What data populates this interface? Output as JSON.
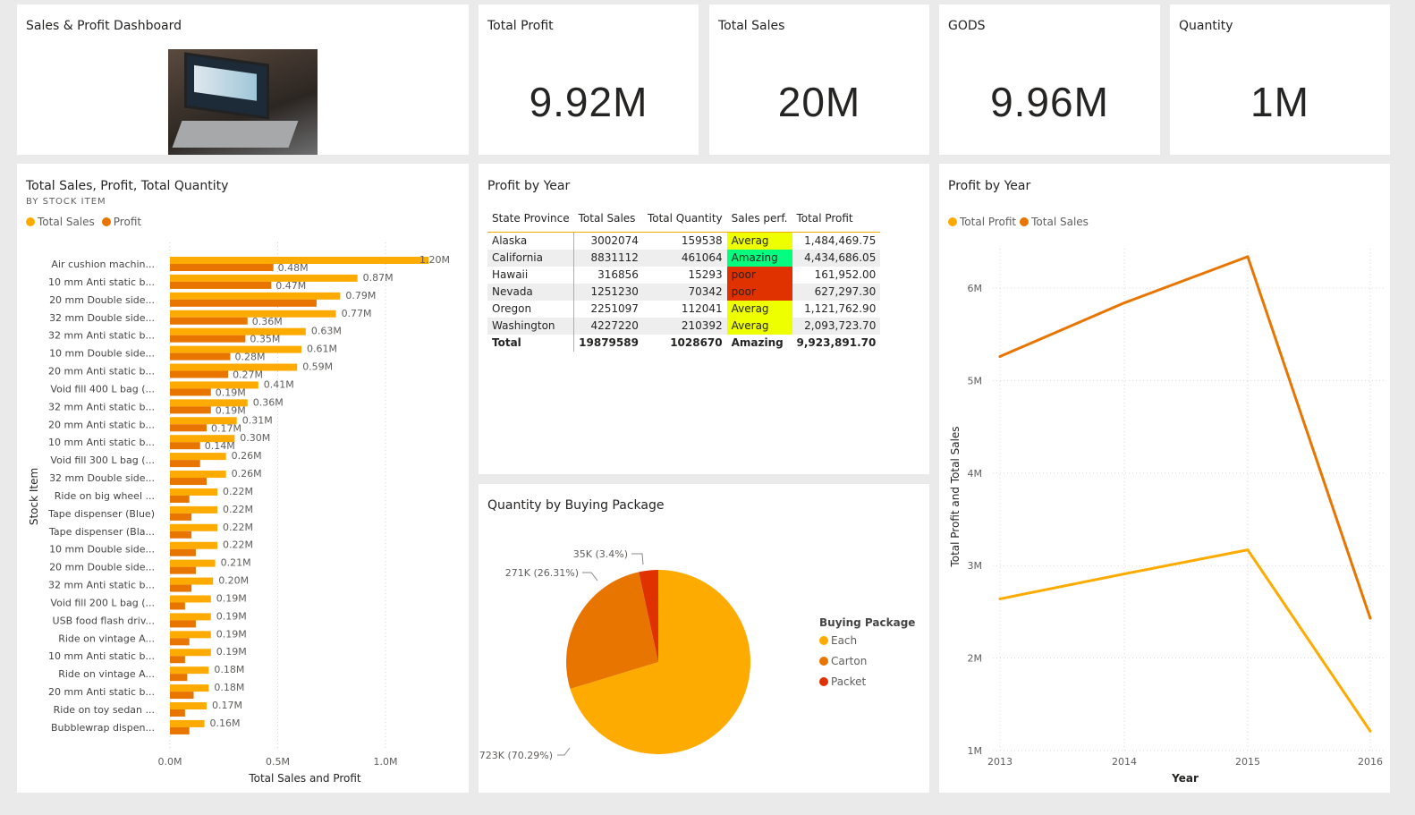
{
  "header": {
    "title": "Sales & Profit Dashboard",
    "image": "laptop-dashboard-photo"
  },
  "kpis": [
    {
      "label": "Total Profit",
      "value": "9.92M"
    },
    {
      "label": "Total Sales",
      "value": "20M"
    },
    {
      "label": "GODS",
      "value": "9.96M"
    },
    {
      "label": "Quantity",
      "value": "1M"
    }
  ],
  "bar_panel": {
    "title": "Total Sales, Profit, Total Quantity",
    "subtitle": "BY STOCK ITEM"
  },
  "table_panel": {
    "title": "Profit by Year",
    "columns": [
      "State Province",
      "Total Sales",
      "Total Quantity",
      "Sales perf.",
      "Total Profit"
    ],
    "rows": [
      [
        "Alaska",
        "3002074",
        "159538",
        "Averag",
        "1,484,469.75"
      ],
      [
        "California",
        "8831112",
        "461064",
        "Amazing",
        "4,434,686.05"
      ],
      [
        "Hawaii",
        "316856",
        "15293",
        "poor",
        "161,952.00"
      ],
      [
        "Nevada",
        "1251230",
        "70342",
        "poor",
        "627,297.30"
      ],
      [
        "Oregon",
        "2251097",
        "112041",
        "Averag",
        "1,121,762.90"
      ],
      [
        "Washington",
        "4227220",
        "210392",
        "Averag",
        "2,093,723.70"
      ]
    ],
    "total": [
      "Total",
      "19879589",
      "1028670",
      "Amazing",
      "9,923,891.70"
    ],
    "perf_colors": {
      "Averag": "#eeff00",
      "Amazing": "#00ff7f",
      "poor": "#e03200"
    }
  },
  "pie_panel": {
    "title": "Quantity by Buying Package"
  },
  "line_panel": {
    "title": "Profit by Year"
  },
  "colors": {
    "sales": "#fdab00",
    "profit": "#e87500",
    "packet": "#e03200"
  },
  "chart_data": [
    {
      "type": "bar",
      "orientation": "horizontal",
      "xlabel": "Total Sales and Profit",
      "ylabel": "Stock Item",
      "xlim": [
        0,
        1200000
      ],
      "xticks": [
        "0.0M",
        "0.5M",
        "1.0M"
      ],
      "grid": true,
      "legend": "top-left",
      "categories": [
        "Air cushion machin...",
        "10 mm Anti static b...",
        "20 mm Double side...",
        "32 mm Double side...",
        "32 mm Anti static b...",
        "10 mm Double side...",
        "20 mm Anti static b...",
        "Void fill 400 L bag (...",
        "32 mm Anti static b...",
        "20 mm Anti static b...",
        "10 mm Anti static b...",
        "Void fill 300 L bag (...",
        "32 mm Double side...",
        "Ride on big wheel ...",
        "Tape dispenser (Blue)",
        "Tape dispenser (Bla...",
        "10 mm Double side...",
        "20 mm Double side...",
        "32 mm Anti static b...",
        "Void fill 200 L bag (...",
        "USB food flash driv...",
        "Ride on vintage A...",
        "10 mm Anti static b...",
        "Ride on vintage A...",
        "20 mm Anti static b...",
        "Ride on toy sedan ...",
        "Bubblewrap dispen..."
      ],
      "series": [
        {
          "name": "Total Sales",
          "values": [
            1.2,
            0.87,
            0.79,
            0.77,
            0.63,
            0.61,
            0.59,
            0.41,
            0.36,
            0.31,
            0.3,
            0.26,
            0.26,
            0.22,
            0.22,
            0.22,
            0.22,
            0.21,
            0.2,
            0.19,
            0.19,
            0.19,
            0.19,
            0.18,
            0.18,
            0.17,
            0.16
          ],
          "labels": [
            "1.20M",
            "0.87M",
            "0.79M",
            "0.77M",
            "0.63M",
            "0.61M",
            "0.59M",
            "0.41M",
            "0.36M",
            "0.31M",
            "0.30M",
            "0.26M",
            "0.26M",
            "0.22M",
            "0.22M",
            "0.22M",
            "0.22M",
            "0.21M",
            "0.20M",
            "0.19M",
            "0.19M",
            "0.19M",
            "0.19M",
            "0.18M",
            "0.18M",
            "0.17M",
            "0.16M"
          ]
        },
        {
          "name": "Profit",
          "values": [
            0.48,
            0.47,
            0.68,
            0.36,
            0.35,
            0.28,
            0.27,
            0.19,
            0.19,
            0.17,
            0.14,
            0.14,
            0.17,
            0.09,
            0.1,
            0.1,
            0.12,
            0.12,
            0.1,
            0.07,
            0.12,
            0.09,
            0.07,
            0.08,
            0.11,
            0.07,
            0.09
          ],
          "labels": [
            "0.48M",
            "0.47M",
            "",
            "0.36M",
            "0.35M",
            "0.28M",
            "0.27M",
            "0.19M",
            "0.19M",
            "0.17M",
            "0.14M",
            "",
            "",
            "",
            "",
            "",
            "",
            "",
            "",
            "",
            "",
            "",
            "",
            "",
            "",
            "",
            ""
          ]
        }
      ]
    },
    {
      "type": "pie",
      "legend_title": "Buying Package",
      "legend": "right",
      "slices": [
        {
          "name": "Each",
          "value": 723000,
          "label": "723K (70.29%)",
          "percent": 70.29
        },
        {
          "name": "Carton",
          "value": 271000,
          "label": "271K (26.31%)",
          "percent": 26.31
        },
        {
          "name": "Packet",
          "value": 35000,
          "label": "35K (3.4%)",
          "percent": 3.4
        }
      ]
    },
    {
      "type": "line",
      "xlabel": "Year",
      "ylabel": "Total Profit and Total Sales",
      "x": [
        "2013",
        "2014",
        "2015",
        "2016"
      ],
      "ylim": [
        1000000,
        6600000
      ],
      "yticks": [
        "1M",
        "2M",
        "3M",
        "4M",
        "5M",
        "6M"
      ],
      "grid": true,
      "legend": "top-left",
      "series": [
        {
          "name": "Total Profit",
          "values": [
            2640000,
            2910000,
            3170000,
            1210000
          ]
        },
        {
          "name": "Total Sales",
          "values": [
            5260000,
            5840000,
            6340000,
            2430000
          ]
        }
      ]
    }
  ]
}
